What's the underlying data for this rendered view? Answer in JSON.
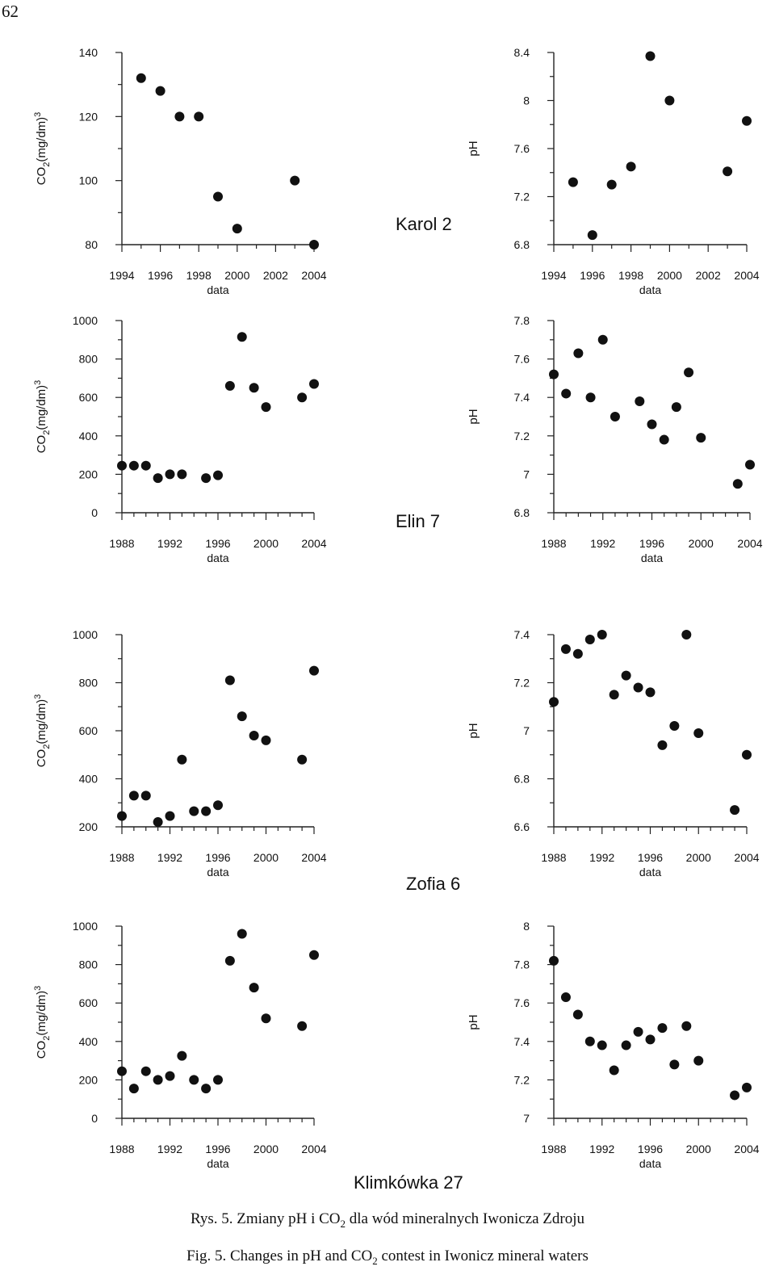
{
  "page_number": "62",
  "captions": {
    "pl": {
      "a": "Rys. 5. Zmiany pH i CO",
      "sub": "2",
      "b": " dla wód mineralnych Iwonicza Zdroju"
    },
    "en": {
      "a": "Fig. 5. Changes in pH and CO",
      "sub": "2",
      "b": " contest in Iwonicz mineral waters"
    }
  },
  "chart_data": [
    {
      "id": "karol-co2",
      "type": "scatter",
      "station": "Karol 2",
      "xlabel": "data",
      "ylabel": "CO2(mg/dm)3",
      "xlim": [
        1994,
        2004
      ],
      "xticks": [
        1994,
        1996,
        1998,
        2000,
        2002,
        2004
      ],
      "ylim": [
        80,
        140
      ],
      "yticks": [
        80,
        100,
        120,
        140
      ],
      "yticklabels": [
        "80",
        "100",
        "120",
        "140"
      ],
      "x": [
        1995,
        1996,
        1997,
        1998,
        1999,
        2000,
        2003,
        2004
      ],
      "y": [
        132,
        128,
        120,
        120,
        95,
        85,
        100,
        80
      ]
    },
    {
      "id": "karol-ph",
      "type": "scatter",
      "station": "Karol 2",
      "xlabel": "data",
      "ylabel": "pH",
      "xlim": [
        1994,
        2004
      ],
      "xticks": [
        1994,
        1996,
        1998,
        2000,
        2002,
        2004
      ],
      "ylim": [
        6.8,
        8.4
      ],
      "yticks": [
        6.8,
        7.2,
        7.6,
        8,
        8.4
      ],
      "yticklabels": [
        "6.8",
        "7.2",
        "7.6",
        "8",
        "8.4"
      ],
      "x": [
        1995,
        1996,
        1997,
        1998,
        1999,
        2000,
        2003,
        2004
      ],
      "y": [
        7.32,
        6.88,
        7.3,
        7.45,
        8.37,
        8.0,
        7.41,
        7.83
      ]
    },
    {
      "id": "elin-co2",
      "type": "scatter",
      "station": "Elin 7",
      "xlabel": "data",
      "ylabel": "CO2(mg/dm)3",
      "xlim": [
        1988,
        2004
      ],
      "xticks": [
        1988,
        1992,
        1996,
        2000,
        2004
      ],
      "ylim": [
        0,
        1000
      ],
      "yticks": [
        0,
        200,
        400,
        600,
        800,
        1000
      ],
      "yticklabels": [
        "0",
        "200",
        "400",
        "600",
        "800",
        "1000"
      ],
      "x": [
        1988,
        1989,
        1990,
        1991,
        1992,
        1993,
        1995,
        1996,
        1997,
        1998,
        1999,
        2000,
        2003,
        2004
      ],
      "y": [
        245,
        245,
        245,
        180,
        200,
        200,
        180,
        195,
        660,
        915,
        650,
        550,
        600,
        670
      ]
    },
    {
      "id": "elin-ph",
      "type": "scatter",
      "station": "Elin 7",
      "xlabel": "data",
      "ylabel": "pH",
      "xlim": [
        1988,
        2004
      ],
      "xticks": [
        1988,
        1992,
        1996,
        2000,
        2004
      ],
      "ylim": [
        6.8,
        7.8
      ],
      "yticks": [
        6.8,
        7,
        7.2,
        7.4,
        7.6,
        7.8
      ],
      "yticklabels": [
        "6.8",
        "7",
        "7.2",
        "7.4",
        "7.6",
        "7.8"
      ],
      "x": [
        1988,
        1989,
        1990,
        1991,
        1992,
        1993,
        1995,
        1996,
        1997,
        1998,
        1999,
        2000,
        2003,
        2004
      ],
      "y": [
        7.52,
        7.42,
        7.63,
        7.4,
        7.7,
        7.3,
        7.38,
        7.26,
        7.18,
        7.35,
        7.53,
        7.19,
        6.95,
        7.05
      ]
    },
    {
      "id": "zofia-co2",
      "type": "scatter",
      "station": "Zofia 6",
      "xlabel": "data",
      "ylabel": "CO2(mg/dm)3",
      "xlim": [
        1988,
        2004
      ],
      "xticks": [
        1988,
        1992,
        1996,
        2000,
        2004
      ],
      "ylim": [
        200,
        1000
      ],
      "yticks": [
        200,
        400,
        600,
        800,
        1000
      ],
      "yticklabels": [
        "200",
        "400",
        "600",
        "800",
        "1000"
      ],
      "x": [
        1988,
        1989,
        1990,
        1991,
        1992,
        1993,
        1994,
        1995,
        1996,
        1997,
        1998,
        1999,
        2000,
        2003,
        2004
      ],
      "y": [
        245,
        330,
        330,
        220,
        245,
        480,
        265,
        265,
        290,
        810,
        660,
        580,
        560,
        480,
        850
      ]
    },
    {
      "id": "zofia-ph",
      "type": "scatter",
      "station": "Zofia 6",
      "xlabel": "data",
      "ylabel": "pH",
      "xlim": [
        1988,
        2004
      ],
      "xticks": [
        1988,
        1992,
        1996,
        2000,
        2004
      ],
      "ylim": [
        6.6,
        7.4
      ],
      "yticks": [
        6.6,
        6.8,
        7,
        7.2,
        7.4
      ],
      "yticklabels": [
        "6.6",
        "6.8",
        "7",
        "7.2",
        "7.4"
      ],
      "x": [
        1988,
        1989,
        1990,
        1991,
        1992,
        1993,
        1994,
        1995,
        1996,
        1997,
        1998,
        1999,
        2000,
        2003,
        2004
      ],
      "y": [
        7.12,
        7.34,
        7.32,
        7.38,
        7.4,
        7.15,
        7.23,
        7.18,
        7.16,
        6.94,
        7.02,
        7.4,
        6.99,
        6.67,
        6.9
      ]
    },
    {
      "id": "klim-co2",
      "type": "scatter",
      "station": "Klimkówka 27",
      "xlabel": "data",
      "ylabel": "CO2(mg/dm)3",
      "xlim": [
        1988,
        2004
      ],
      "xticks": [
        1988,
        1992,
        1996,
        2000,
        2004
      ],
      "ylim": [
        0,
        1000
      ],
      "yticks": [
        0,
        200,
        400,
        600,
        800,
        1000
      ],
      "yticklabels": [
        "0",
        "200",
        "400",
        "600",
        "800",
        "1000"
      ],
      "x": [
        1988,
        1989,
        1990,
        1991,
        1992,
        1993,
        1994,
        1995,
        1996,
        1997,
        1998,
        1999,
        2000,
        2003,
        2004
      ],
      "y": [
        245,
        155,
        245,
        200,
        220,
        325,
        200,
        155,
        200,
        820,
        960,
        680,
        520,
        480,
        850
      ]
    },
    {
      "id": "klim-ph",
      "type": "scatter",
      "station": "Klimkówka 27",
      "xlabel": "data",
      "ylabel": "pH",
      "xlim": [
        1988,
        2004
      ],
      "xticks": [
        1988,
        1992,
        1996,
        2000,
        2004
      ],
      "ylim": [
        7,
        8
      ],
      "yticks": [
        7,
        7.2,
        7.4,
        7.6,
        7.8,
        8
      ],
      "yticklabels": [
        "7",
        "7.2",
        "7.4",
        "7.6",
        "7.8",
        "8"
      ],
      "x": [
        1988,
        1989,
        1990,
        1991,
        1992,
        1993,
        1994,
        1995,
        1996,
        1997,
        1998,
        1999,
        2000,
        2003,
        2004
      ],
      "y": [
        7.82,
        7.63,
        7.54,
        7.4,
        7.38,
        7.25,
        7.38,
        7.45,
        7.41,
        7.47,
        7.28,
        7.48,
        7.3,
        7.12,
        7.16
      ]
    }
  ]
}
